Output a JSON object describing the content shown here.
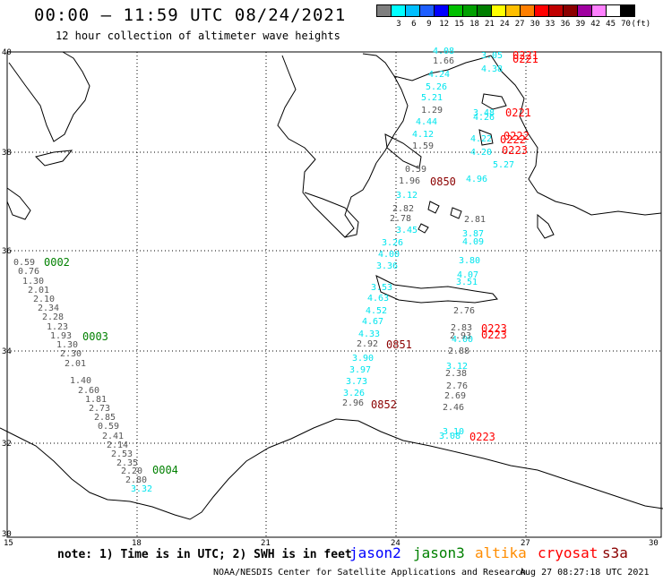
{
  "header": {
    "title": "00:00 – 11:59 UTC 08/24/2021",
    "subtitle": "12 hour collection of altimeter wave heights"
  },
  "scale": {
    "colors": [
      "#7f7f7f",
      "#00ffff",
      "#00bfff",
      "#1e5fff",
      "#0000ff",
      "#00c000",
      "#00a000",
      "#007f00",
      "#ffff00",
      "#ffbf00",
      "#ff7f00",
      "#ff0000",
      "#c00000",
      "#8b0000",
      "#a000a0",
      "#ff80ff",
      "#ffffff",
      "#000000"
    ],
    "labels": [
      "3",
      "6",
      "9",
      "12",
      "15",
      "18",
      "21",
      "24",
      "27",
      "30",
      "33",
      "36",
      "39",
      "42",
      "45",
      "70",
      "(ft)"
    ]
  },
  "axes": {
    "lat_labels": [
      "40",
      "38",
      "36",
      "34",
      "32",
      "30"
    ],
    "lon_labels": [
      "15",
      "18",
      "21",
      "24",
      "27",
      "30"
    ]
  },
  "map_labels": {
    "cyan_values": [
      "4.08",
      "3.05",
      "4.38",
      "4.24",
      "5.26",
      "5.21",
      "4.44",
      "4.12",
      "5.27",
      "4.96",
      "4.22",
      "4.20",
      "3.48",
      "4.26",
      "3.12",
      "3.45",
      "3.26",
      "4.00",
      "3.36",
      "3.53",
      "4.63",
      "4.52",
      "4.67",
      "4.33",
      "3.90",
      "3.97",
      "3.73",
      "3.26",
      "3.87",
      "4.09",
      "3.80",
      "4.07",
      "3.51",
      "4.00",
      "3.32",
      "3.10",
      "3.12",
      "3.08"
    ],
    "gray_values": [
      "1.66",
      "1.29",
      "1.59",
      "0.59",
      "1.96",
      "2.82",
      "2.78",
      "2.81",
      "2.76",
      "2.92",
      "2.96",
      "2.83",
      "2.88",
      "2.38",
      "2.76",
      "2.69",
      "2.46",
      "2.93",
      "0.59",
      "0.76",
      "1.30",
      "2.01",
      "2.10",
      "2.34",
      "2.28",
      "1.23",
      "1.93",
      "1.30",
      "2.30",
      "2.01",
      "1.40",
      "2.60",
      "1.81",
      "2.73",
      "2.85",
      "0.59",
      "2.41",
      "2.14",
      "2.53",
      "2.35",
      "2.20",
      "2.80"
    ],
    "red_times": [
      "0221",
      "0221",
      "0221",
      "0222",
      "0222",
      "0223",
      "0223",
      "0223",
      "0223"
    ],
    "darkred_times": [
      "0850",
      "0851",
      "0852"
    ],
    "green_times": [
      "0002",
      "0003",
      "0004"
    ]
  },
  "footer": {
    "note": "note: 1) Time is in UTC; 2) SWH is in feet",
    "satellites": [
      {
        "label": "jason2",
        "color": "#0000ff"
      },
      {
        "label": "jason3",
        "color": "#008000"
      },
      {
        "label": "altika",
        "color": "#ff8c00"
      },
      {
        "label": "cryosat",
        "color": "#ff0000"
      },
      {
        "label": "s3a",
        "color": "#8b0000"
      }
    ],
    "credit": "NOAA/NESDIS Center for Satellite Applications and Research",
    "timestamp": "Aug 27 08:27:18 UTC 2021"
  }
}
